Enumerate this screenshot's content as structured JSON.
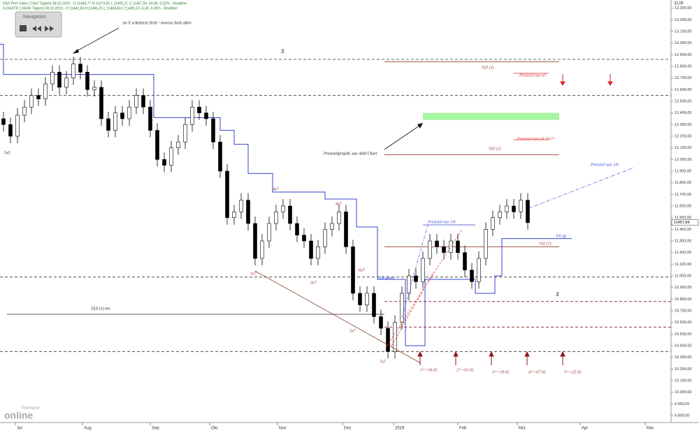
{
  "header": {
    "line1": "DAX Perf. Index ( DAX Täglich) 08.03.2019 - O:11459,77 H:11473,55 L:11405,21 C:11457,84 -59,96 -0,52% - Realtime",
    "line2": "X-DAXTR ( DAXR Täglich) 08.03.2019 - O:11441,84 H:11496,25 L:11484,84 C:11495,23 -5,30 -0,05% - Realtime"
  },
  "navigation": {
    "title": "Navigation"
  },
  "logo": {
    "small": "Tradesignal",
    "big": "online"
  },
  "chart_data": {
    "type": "candlestick",
    "currency": "EUR",
    "last_price_label": "11457,84",
    "up_color": "#ffffff",
    "down_color": "#000000",
    "open": [
      12350,
      12300,
      12200,
      12380,
      12450,
      12550,
      12520,
      12650,
      12750,
      12620,
      12700,
      12820,
      12750,
      12600,
      12620,
      12350,
      12250,
      12400,
      12350,
      12450,
      12550,
      12450,
      12250,
      12000,
      11950,
      12100,
      12150,
      12300,
      12450,
      12400,
      12350,
      12150,
      11900,
      11500,
      11550,
      11650,
      11450,
      11150,
      11300,
      11450,
      11550,
      11600,
      11450,
      11350,
      11300,
      11150,
      11250,
      11400,
      11450,
      11550,
      11250,
      10850,
      10750,
      10850,
      10650,
      10550,
      10350,
      10600,
      10850,
      11000,
      10950,
      11150,
      11300,
      11250,
      11200,
      11300,
      11200,
      11050,
      10950,
      11150,
      11400,
      11500,
      11550,
      11600,
      11550,
      11650
    ],
    "high": [
      12410,
      12360,
      12440,
      12510,
      12610,
      12610,
      12710,
      12810,
      12810,
      12760,
      12880,
      12880,
      12810,
      12680,
      12680,
      12410,
      12460,
      12460,
      12510,
      12610,
      12610,
      12510,
      12310,
      12060,
      12160,
      12210,
      12360,
      12510,
      12510,
      12460,
      12410,
      12210,
      11960,
      11610,
      11710,
      11710,
      11510,
      11360,
      11510,
      11610,
      11660,
      11660,
      11510,
      11410,
      11360,
      11310,
      11460,
      11510,
      11610,
      11610,
      11310,
      10910,
      10910,
      10910,
      10710,
      10610,
      10660,
      10910,
      11060,
      11060,
      11210,
      11360,
      11360,
      11310,
      11360,
      11360,
      11260,
      11110,
      11210,
      11460,
      11560,
      11610,
      11660,
      11660,
      11710,
      11710
    ],
    "low": [
      12240,
      12140,
      12140,
      12320,
      12390,
      12460,
      12460,
      12590,
      12560,
      12560,
      12640,
      12690,
      12540,
      12540,
      12290,
      12190,
      12190,
      12290,
      12290,
      12390,
      12390,
      12190,
      11940,
      11890,
      11890,
      12040,
      12090,
      12240,
      12340,
      12290,
      12090,
      11840,
      11440,
      11440,
      11490,
      11390,
      11090,
      11090,
      11240,
      11390,
      11490,
      11390,
      11290,
      11240,
      11090,
      11090,
      11190,
      11340,
      11390,
      11190,
      10790,
      10690,
      10690,
      10590,
      10490,
      10290,
      10290,
      10540,
      10790,
      10890,
      10890,
      11090,
      11190,
      11140,
      11140,
      11140,
      10990,
      10890,
      10890,
      11090,
      11340,
      11440,
      11490,
      11490,
      11490,
      11397
    ],
    "close": [
      12300,
      12200,
      12380,
      12450,
      12550,
      12520,
      12650,
      12750,
      12620,
      12700,
      12820,
      12750,
      12600,
      12620,
      12350,
      12250,
      12400,
      12350,
      12450,
      12550,
      12450,
      12250,
      12000,
      11950,
      12100,
      12150,
      12300,
      12450,
      12400,
      12350,
      12150,
      11900,
      11500,
      11550,
      11650,
      11450,
      11150,
      11300,
      11450,
      11550,
      11600,
      11450,
      11350,
      11300,
      11150,
      11250,
      11400,
      11450,
      11550,
      11250,
      10850,
      10750,
      10850,
      10650,
      10550,
      10350,
      10600,
      10850,
      11000,
      10950,
      11150,
      11300,
      11250,
      11200,
      11300,
      11200,
      11050,
      10950,
      11150,
      11400,
      11500,
      11550,
      11600,
      11550,
      11650,
      11457.84
    ],
    "xlim": [
      -0.5,
      95.5
    ],
    "xticks": [
      {
        "value": 1.7,
        "label": "Jul"
      },
      {
        "value": 11.3,
        "label": "Aug"
      },
      {
        "value": 21,
        "label": "Sep"
      },
      {
        "value": 29.5,
        "label": "Okt"
      },
      {
        "value": 39.2,
        "label": "Nov"
      },
      {
        "value": 48.5,
        "label": "Dez"
      },
      {
        "value": 55.8,
        "label": "2019"
      },
      {
        "value": 65,
        "label": "Feb"
      },
      {
        "value": 73.5,
        "label": "Mrz"
      },
      {
        "value": 82.5,
        "label": "Apr"
      },
      {
        "value": 91.8,
        "label": "Mai"
      }
    ],
    "ylim": [
      9740,
      13370
    ],
    "yticks": [
      {
        "value": 9800,
        "label": "9.800,00"
      },
      {
        "value": 9900,
        "label": "9.900,00"
      },
      {
        "value": 10000,
        "label": "10.000,00"
      },
      {
        "value": 10100,
        "label": "10.100,00"
      },
      {
        "value": 10200,
        "label": "10.200,00"
      },
      {
        "value": 10300,
        "label": "10.300,00"
      },
      {
        "value": 10400,
        "label": "10.400,00"
      },
      {
        "value": 10500,
        "label": "10.500,00"
      },
      {
        "value": 10600,
        "label": "10.600,00"
      },
      {
        "value": 10700,
        "label": "10.700,00"
      },
      {
        "value": 10800,
        "label": "10.800,00"
      },
      {
        "value": 10900,
        "label": "10.900,00"
      },
      {
        "value": 11000,
        "label": "11.000,00"
      },
      {
        "value": 11100,
        "label": "11.100,00"
      },
      {
        "value": 11200,
        "label": "11.200,00"
      },
      {
        "value": 11300,
        "label": "11.300,00"
      },
      {
        "value": 11400,
        "label": "11.400,00"
      },
      {
        "value": 11500,
        "label": "11.500,00"
      },
      {
        "value": 11600,
        "label": "11.600,00"
      },
      {
        "value": 11700,
        "label": "11.700,00"
      },
      {
        "value": 11800,
        "label": "11.800,00"
      },
      {
        "value": 11900,
        "label": "11.900,00"
      },
      {
        "value": 12000,
        "label": "12.000,00"
      },
      {
        "value": 12100,
        "label": "12.100,00"
      },
      {
        "value": 12200,
        "label": "12.200,00"
      },
      {
        "value": 12300,
        "label": "12.300,00"
      },
      {
        "value": 12400,
        "label": "12.400,00"
      },
      {
        "value": 12500,
        "label": "12.500,00"
      },
      {
        "value": 12600,
        "label": "12.600,00"
      },
      {
        "value": 12700,
        "label": "12.700,00"
      },
      {
        "value": 12800,
        "label": "12.800,00"
      },
      {
        "value": 12900,
        "label": "12.900,00"
      },
      {
        "value": 13000,
        "label": "13.000,00"
      },
      {
        "value": 13100,
        "label": "13.100,00"
      },
      {
        "value": 13200,
        "label": "13.200,00"
      },
      {
        "value": 13300,
        "label": "13.300,00"
      }
    ],
    "stop_line": {
      "color": "#3344cc",
      "x": [
        -0.5,
        0,
        0,
        21.5,
        21.5,
        31,
        31,
        33,
        33,
        35,
        35,
        38.5,
        38.5,
        46,
        46,
        50.5,
        50.5,
        53.5,
        53.5,
        57.5,
        57.5,
        60.3,
        60.3,
        67.5,
        67.5,
        70.3,
        70.3,
        71.3,
        71.3,
        81.3
      ],
      "values": [
        12990,
        12990,
        12730,
        12730,
        12360,
        12360,
        12250,
        12250,
        12130,
        12130,
        11880,
        11880,
        11720,
        11720,
        11660,
        11660,
        11420,
        11420,
        10970,
        10970,
        10400,
        10400,
        10970,
        10970,
        10850,
        10850,
        11000,
        11000,
        11320,
        11320
      ]
    },
    "target_zone": {
      "low": 12340,
      "high": 12400,
      "from": 60,
      "to": 79.5,
      "color": "#a6f5a1"
    },
    "levels": [
      {
        "value": 12860,
        "from": -0.5,
        "to": 95.5,
        "color": "#333333",
        "dashed": true
      },
      {
        "value": 12550,
        "from": -0.5,
        "to": 95.5,
        "color": "#333333",
        "dashed": true
      },
      {
        "value": 10990,
        "from": -0.5,
        "to": 95.5,
        "color": "#333333",
        "dashed": true
      },
      {
        "value": 10350,
        "from": -0.5,
        "to": 95.5,
        "color": "#333333",
        "dashed": true
      },
      {
        "value": 10670,
        "from": 0.5,
        "to": 54.5,
        "color": "#222222",
        "dashed": false
      },
      {
        "value": 10780,
        "from": 54.5,
        "to": 95.5,
        "color": "#8b1a1a",
        "dashed": true
      },
      {
        "value": 10560,
        "from": 54.5,
        "to": 95.5,
        "color": "#8b1a1a",
        "dashed": true
      },
      {
        "value": 12840,
        "from": 54.5,
        "to": 79.5,
        "color": "#8b3a2a",
        "dashed": false
      },
      {
        "value": 12040,
        "from": 54.5,
        "to": 79.5,
        "color": "#8b3a2a",
        "dashed": false
      },
      {
        "value": 11250,
        "from": 54.5,
        "to": 79.5,
        "color": "#8b3a2a",
        "dashed": false
      },
      {
        "value": 12740,
        "from": 73,
        "to": 78,
        "color": "#dd2222",
        "dashed": false
      },
      {
        "value": 12170,
        "from": 73,
        "to": 78,
        "color": "#dd2222",
        "dashed": false
      },
      {
        "value": 11438,
        "from": 60,
        "to": 67.5,
        "color": "#3344cc",
        "dashed": false
      }
    ],
    "annotations": [
      {
        "text": "An X scheiterte DAX - inverse Ziele aktiv",
        "color": "#111111"
      },
      {
        "text": "X",
        "color": "#111111"
      },
      {
        "text": "?XZ (3)",
        "color": "#8b3a2a"
      },
      {
        "text": "Preisziel aus a/l",
        "color": "#dd2222"
      },
      {
        "text": "Preisziel aus a/l.?t/t??",
        "color": "#dd2222"
      },
      {
        "text": "?XZ (2)",
        "color": "#8b3a2a"
      },
      {
        "text": "Preiszielprojekt. aus 4Std Chart",
        "color": "#111111"
      },
      {
        "text": "Preisziel aus 3/6",
        "color": "#3344cc"
      },
      {
        "text": "5x5",
        "color": "#111111"
      },
      {
        "text": "4x7",
        "color": "#8b1a1a"
      },
      {
        "text": "4x7",
        "color": "#8b1a1a"
      },
      {
        "text": "Preisziel aus 3/6",
        "color": "#3344cc"
      },
      {
        "text": "3/6 up",
        "color": "#3344cc"
      },
      {
        "text": "?XZ (1)",
        "color": "#8b3a2a"
      },
      {
        "text": "1x7",
        "color": "#8b1a1a"
      },
      {
        "text": "3x7",
        "color": "#8b1a1a"
      },
      {
        "text": "6x7",
        "color": "#8b1a1a"
      },
      {
        "text": "3/6 down",
        "color": "#3344cc"
      },
      {
        "text": "X",
        "color": "#111111"
      },
      {
        "text": "5XZ (1) inv.",
        "color": "#111111"
      },
      {
        "text": "5x7",
        "color": "#8b1a1a"
      },
      {
        "text": "7x7",
        "color": "#8b1a1a"
      },
      {
        "text": "1=>16.01",
        "color": "#8b1a1a"
      },
      {
        "text": "2=>01.02",
        "color": "#8b1a1a"
      },
      {
        "text": "3=>19.02",
        "color": "#8b1a1a"
      },
      {
        "text": "4=>07.03",
        "color": "#8b1a1a"
      },
      {
        "text": "5=>25.03",
        "color": "#8b1a1a"
      }
    ]
  }
}
